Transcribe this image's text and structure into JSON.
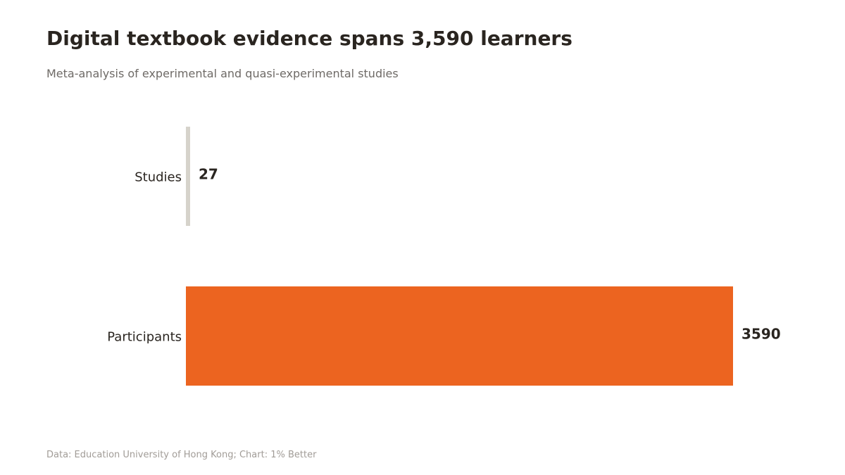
{
  "title": "Digital textbook evidence spans 3,590 learners",
  "subtitle": "Meta-analysis of experimental and quasi-experimental studies",
  "source": "Data: Education University of Hong Kong; Chart: 1% Better",
  "chart_data": {
    "type": "bar",
    "orientation": "horizontal",
    "categories": [
      "Studies",
      "Participants"
    ],
    "values": [
      27,
      3590
    ],
    "value_labels": [
      "27",
      "3590"
    ],
    "colors": [
      "#d6d3cb",
      "#ec6420"
    ],
    "xlim": [
      0,
      3590
    ],
    "grid": false,
    "legend": "none"
  }
}
